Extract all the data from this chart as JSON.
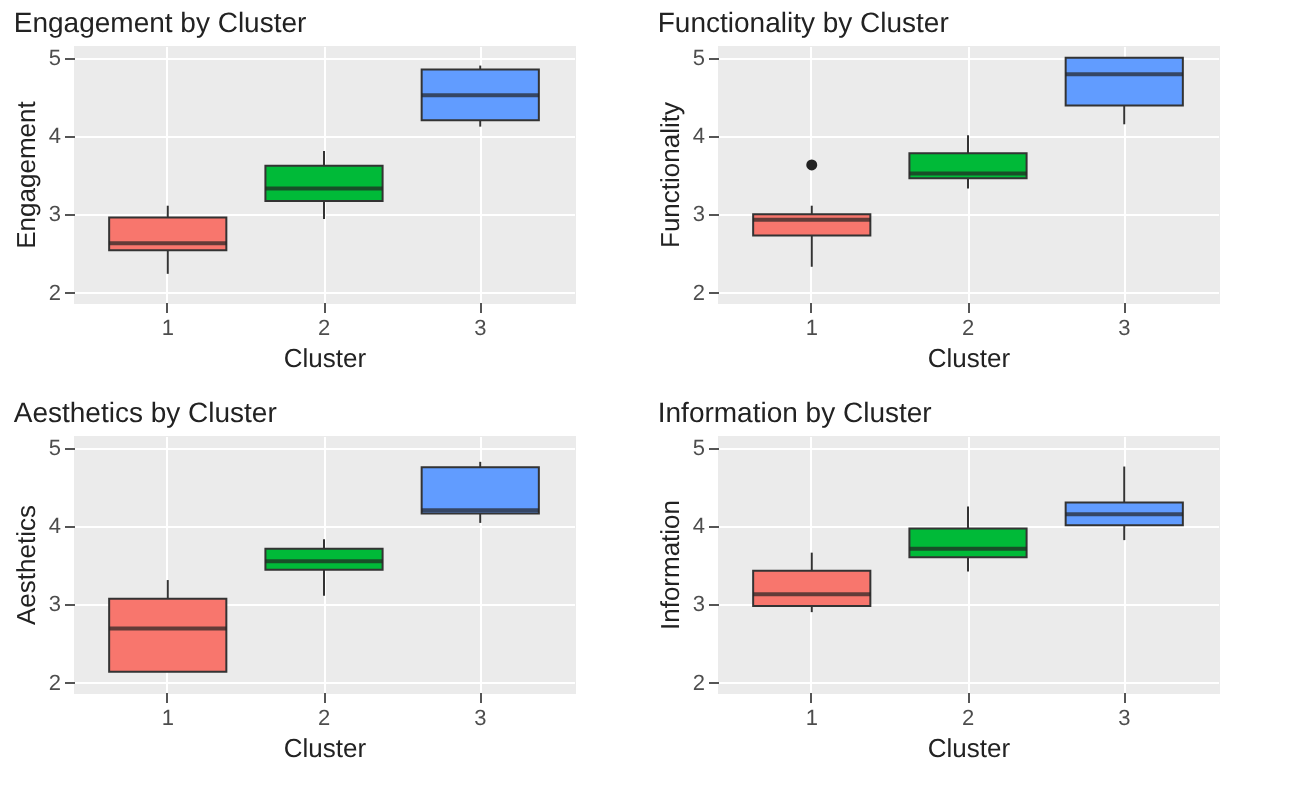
{
  "chart_data": [
    {
      "type": "box",
      "title": "Engagement by Cluster",
      "xlabel": "Cluster",
      "ylabel": "Engagement",
      "categories": [
        "1",
        "2",
        "3"
      ],
      "colors": [
        "#f8766d",
        "#00ba38",
        "#619cff"
      ],
      "ylim": [
        1.88,
        5.15
      ],
      "yticks": [
        2,
        3,
        4,
        5
      ],
      "grid": true,
      "legend": false,
      "boxes": [
        {
          "low": 2.24,
          "q1": 2.54,
          "median": 2.63,
          "q3": 2.96,
          "high": 3.11
        },
        {
          "low": 2.94,
          "q1": 3.17,
          "median": 3.33,
          "q3": 3.62,
          "high": 3.81
        },
        {
          "low": 4.12,
          "q1": 4.2,
          "median": 4.52,
          "q3": 4.85,
          "high": 4.9
        }
      ]
    },
    {
      "type": "box",
      "title": "Functionality by Cluster",
      "xlabel": "Cluster",
      "ylabel": "Functionality",
      "categories": [
        "1",
        "2",
        "3"
      ],
      "colors": [
        "#f8766d",
        "#00ba38",
        "#619cff"
      ],
      "ylim": [
        1.88,
        5.15
      ],
      "yticks": [
        2,
        3,
        4,
        5
      ],
      "grid": true,
      "legend": false,
      "boxes": [
        {
          "low": 2.33,
          "q1": 2.73,
          "median": 2.93,
          "q3": 3.0,
          "high": 3.11,
          "outliers": [
            3.63
          ]
        },
        {
          "low": 3.33,
          "q1": 3.46,
          "median": 3.52,
          "q3": 3.78,
          "high": 4.01
        },
        {
          "low": 4.15,
          "q1": 4.39,
          "median": 4.79,
          "q3": 5.0,
          "high": 5.0
        }
      ]
    },
    {
      "type": "box",
      "title": "Aesthetics by Cluster",
      "xlabel": "Cluster",
      "ylabel": "Aesthetics",
      "categories": [
        "1",
        "2",
        "3"
      ],
      "colors": [
        "#f8766d",
        "#00ba38",
        "#619cff"
      ],
      "ylim": [
        1.88,
        5.15
      ],
      "yticks": [
        2,
        3,
        4,
        5
      ],
      "grid": true,
      "legend": false,
      "boxes": [
        {
          "low": 2.14,
          "q1": 2.14,
          "median": 2.69,
          "q3": 3.07,
          "high": 3.31
        },
        {
          "low": 3.11,
          "q1": 3.44,
          "median": 3.55,
          "q3": 3.71,
          "high": 3.83
        },
        {
          "low": 4.04,
          "q1": 4.16,
          "median": 4.2,
          "q3": 4.75,
          "high": 4.82
        }
      ]
    },
    {
      "type": "box",
      "title": "Information by Cluster",
      "xlabel": "Cluster",
      "ylabel": "Information",
      "categories": [
        "1",
        "2",
        "3"
      ],
      "colors": [
        "#f8766d",
        "#00ba38",
        "#619cff"
      ],
      "ylim": [
        1.88,
        5.15
      ],
      "yticks": [
        2,
        3,
        4,
        5
      ],
      "grid": true,
      "legend": false,
      "boxes": [
        {
          "low": 2.9,
          "q1": 2.98,
          "median": 3.13,
          "q3": 3.43,
          "high": 3.66
        },
        {
          "low": 3.42,
          "q1": 3.6,
          "median": 3.71,
          "q3": 3.97,
          "high": 4.25
        },
        {
          "low": 3.82,
          "q1": 4.01,
          "median": 4.15,
          "q3": 4.3,
          "high": 4.76
        }
      ]
    }
  ]
}
